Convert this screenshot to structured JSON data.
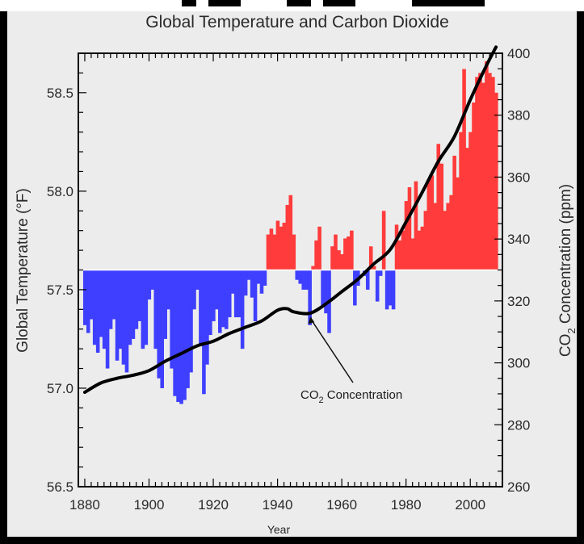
{
  "chart_data": {
    "type": "bar",
    "title": "Global Temperature and Carbon Dioxide",
    "xlabel": "Year",
    "ylabel_left": "Global Temperature (°F)",
    "ylabel_right_prefix": "CO",
    "ylabel_right_sub": "2",
    "ylabel_right_suffix": " Concentration (ppm)",
    "xlim": [
      1878,
      2010
    ],
    "ylim_left": [
      56.5,
      58.7
    ],
    "ylim_right": [
      260,
      400
    ],
    "baseline": 57.6,
    "x_ticks": [
      "1880",
      "1900",
      "1920",
      "1940",
      "1960",
      "1980",
      "2000"
    ],
    "y_left_ticks": [
      "56.5",
      "57.0",
      "57.5",
      "58.0",
      "58.5"
    ],
    "y_right_ticks": [
      "260",
      "280",
      "300",
      "320",
      "340",
      "360",
      "380",
      "400"
    ],
    "above_color": "#ff3b3b",
    "below_color": "#3f3fff",
    "line_color": "#000000",
    "series": [
      {
        "name": "Global Temperature",
        "years": [
          1880,
          1881,
          1882,
          1883,
          1884,
          1885,
          1886,
          1887,
          1888,
          1889,
          1890,
          1891,
          1892,
          1893,
          1894,
          1895,
          1896,
          1897,
          1898,
          1899,
          1900,
          1901,
          1902,
          1903,
          1904,
          1905,
          1906,
          1907,
          1908,
          1909,
          1910,
          1911,
          1912,
          1913,
          1914,
          1915,
          1916,
          1917,
          1918,
          1919,
          1920,
          1921,
          1922,
          1923,
          1924,
          1925,
          1926,
          1927,
          1928,
          1929,
          1930,
          1931,
          1932,
          1933,
          1934,
          1935,
          1936,
          1937,
          1938,
          1939,
          1940,
          1941,
          1942,
          1943,
          1944,
          1945,
          1946,
          1947,
          1948,
          1949,
          1950,
          1951,
          1952,
          1953,
          1954,
          1955,
          1956,
          1957,
          1958,
          1959,
          1960,
          1961,
          1962,
          1963,
          1964,
          1965,
          1966,
          1967,
          1968,
          1969,
          1970,
          1971,
          1972,
          1973,
          1974,
          1975,
          1976,
          1977,
          1978,
          1979,
          1980,
          1981,
          1982,
          1983,
          1984,
          1985,
          1986,
          1987,
          1988,
          1989,
          1990,
          1991,
          1992,
          1993,
          1994,
          1995,
          1996,
          1997,
          1998,
          1999,
          2000,
          2001,
          2002,
          2003,
          2004,
          2005,
          2006,
          2007,
          2008
        ],
        "values": [
          57.32,
          57.28,
          57.35,
          57.22,
          57.18,
          57.26,
          57.2,
          57.1,
          57.3,
          57.35,
          57.14,
          57.2,
          57.12,
          57.08,
          57.22,
          57.25,
          57.3,
          57.34,
          57.2,
          57.22,
          57.45,
          57.5,
          57.2,
          57.05,
          57.0,
          57.25,
          57.4,
          57.1,
          56.96,
          56.93,
          56.92,
          56.94,
          57.0,
          57.08,
          57.4,
          57.5,
          57.22,
          56.97,
          57.12,
          57.27,
          57.34,
          57.4,
          57.28,
          57.31,
          57.3,
          57.36,
          57.48,
          57.36,
          57.36,
          57.2,
          57.47,
          57.55,
          57.46,
          57.34,
          57.53,
          57.48,
          57.52,
          57.78,
          57.81,
          57.78,
          57.85,
          57.82,
          57.84,
          57.93,
          57.98,
          57.78,
          57.55,
          57.53,
          57.5,
          57.5,
          57.32,
          57.62,
          57.75,
          57.82,
          57.42,
          57.38,
          57.28,
          57.72,
          57.78,
          57.7,
          57.68,
          57.76,
          57.77,
          57.8,
          57.42,
          57.52,
          57.6,
          57.57,
          57.5,
          57.72,
          57.62,
          57.44,
          57.57,
          57.9,
          57.4,
          57.42,
          57.4,
          57.83,
          57.75,
          57.8,
          57.95,
          58.02,
          57.76,
          58.05,
          57.8,
          57.82,
          57.9,
          58.06,
          58.08,
          57.94,
          58.24,
          58.14,
          57.9,
          57.94,
          57.98,
          58.18,
          58.07,
          58.3,
          58.62,
          58.22,
          58.3,
          58.45,
          58.58,
          58.6,
          58.55,
          58.66,
          58.6,
          58.58,
          58.5
        ]
      },
      {
        "name": "CO2 Concentration",
        "years": [
          1880,
          1885,
          1890,
          1895,
          1900,
          1905,
          1910,
          1915,
          1920,
          1925,
          1930,
          1935,
          1940,
          1943,
          1945,
          1950,
          1955,
          1960,
          1965,
          1970,
          1975,
          1980,
          1985,
          1990,
          1995,
          2000,
          2005,
          2008
        ],
        "values": [
          290.5,
          293.5,
          295,
          296,
          297.5,
          300.5,
          303,
          305.5,
          307,
          309.5,
          311.5,
          313.5,
          317,
          317.5,
          316.5,
          316,
          319,
          323,
          327,
          332,
          336.5,
          345.5,
          355,
          365,
          373,
          385,
          396,
          402
        ]
      }
    ],
    "annotation": {
      "text_prefix": "CO",
      "text_sub": "2",
      "text_suffix": " Concentration",
      "points_to_year": 1950
    }
  }
}
